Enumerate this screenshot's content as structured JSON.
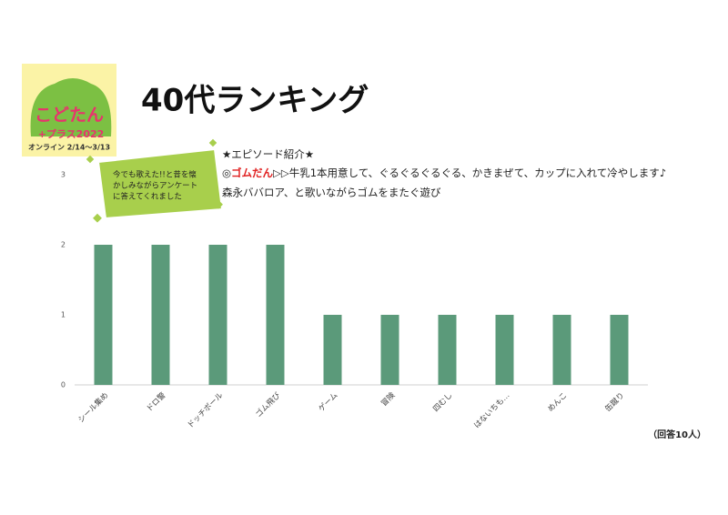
{
  "chart_data": {
    "type": "bar",
    "title": "40代ランキング",
    "categories": [
      "シール集め",
      "ドロ警",
      "ドッチボール",
      "ゴム飛び",
      "ゲーム",
      "冒険",
      "四むし",
      "はないちも…",
      "めんこ",
      "缶蹴り"
    ],
    "values": [
      2,
      2,
      2,
      2,
      1,
      1,
      1,
      1,
      1,
      1
    ],
    "color": "#5b9a7a",
    "ylim": [
      0,
      3
    ],
    "yticks": [
      0,
      1,
      2,
      3
    ],
    "grid": false
  },
  "logo": {
    "lines": [
      "こどたん",
      "+プラス2022",
      "オンライン 2/14～3/13"
    ]
  },
  "callout": {
    "lines": [
      "今でも歌えた!!と昔を懐",
      "かしみながらアンケート",
      "に答えてくれました"
    ]
  },
  "episode": {
    "heading": "★エピソード紹介★",
    "line1": [
      "◎",
      "ゴムだん",
      "▷▷牛乳1本用意して、ぐるぐるぐるぐる、かきまぜて、カップに入れて冷やします♪"
    ],
    "line2": "森永ババロア、と歌いながらゴムをまたぐ遊び"
  },
  "note": "（回答10人）"
}
